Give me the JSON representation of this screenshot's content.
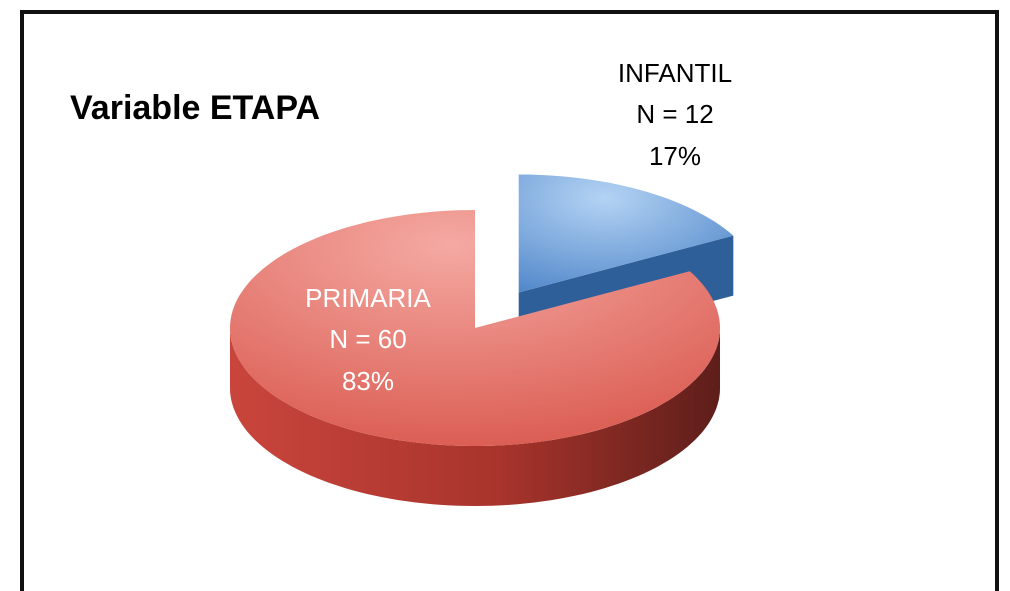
{
  "chart_data": {
    "type": "pie3d",
    "title": "Variable ETAPA",
    "categories": [
      "INFANTIL",
      "PRIMARIA"
    ],
    "values": [
      17,
      83
    ],
    "value_labels": [
      "17%",
      "83%"
    ],
    "counts": [
      12,
      60
    ],
    "count_labels": [
      "N = 12",
      "N = 60"
    ],
    "colors": [
      "#5b8fd0",
      "#d9534a"
    ],
    "exploded": [
      true,
      false
    ]
  }
}
